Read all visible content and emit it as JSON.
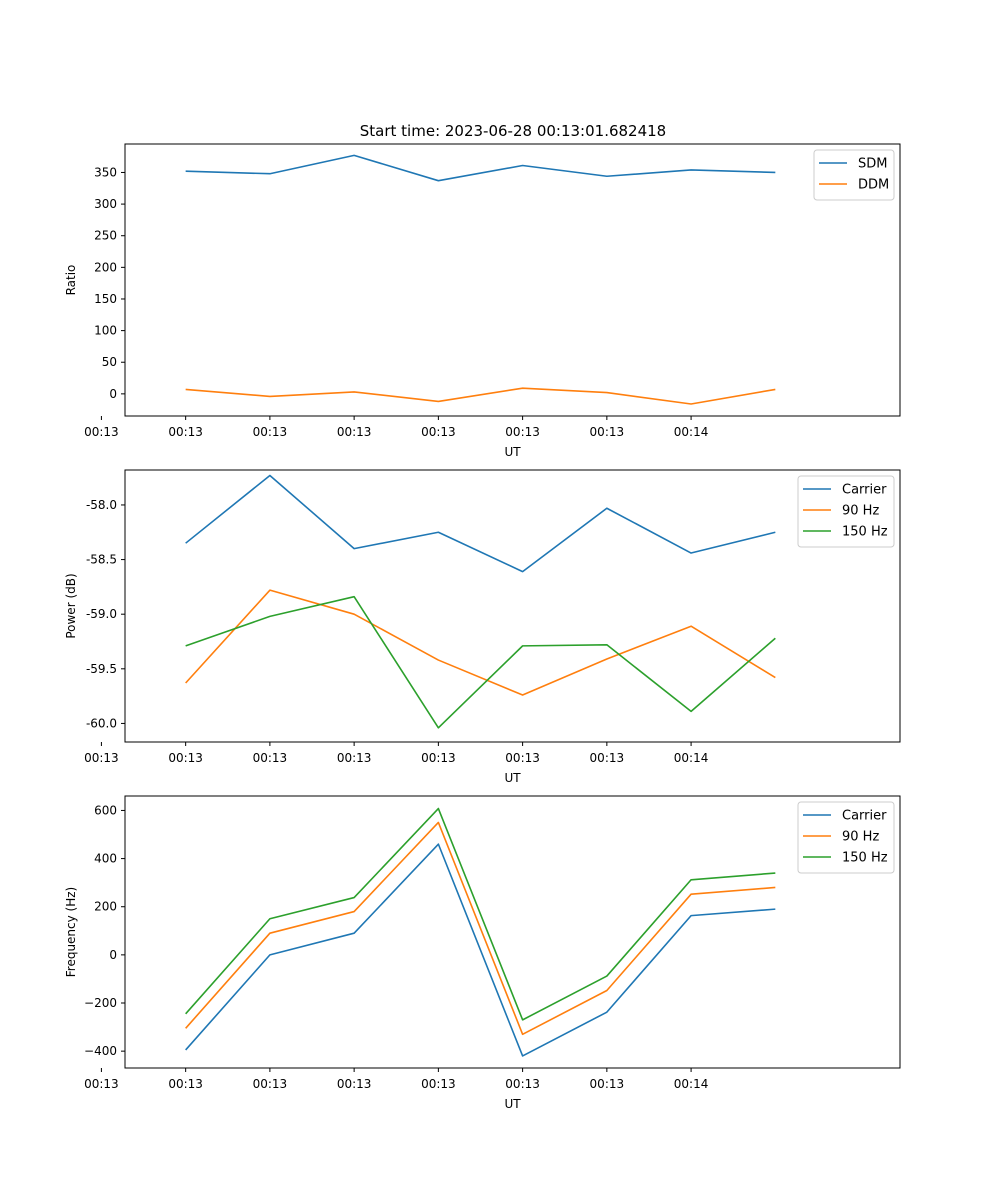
{
  "figure_title": "Start time: 2023-06-28 00:13:01.682418",
  "chart_data": [
    {
      "type": "line",
      "title": "Start time: 2023-06-28 00:13:01.682418",
      "xlabel": "UT",
      "ylabel": "Ratio",
      "x_ticks": [
        "00:13",
        "00:13",
        "00:13",
        "00:13",
        "00:13",
        "00:13",
        "00:13",
        "00:14"
      ],
      "x": [
        1,
        2,
        3,
        4,
        5,
        6,
        7,
        8
      ],
      "xlim": [
        0.28,
        9.48
      ],
      "y_ticks": [
        0,
        50,
        100,
        150,
        200,
        250,
        300,
        350
      ],
      "ylim": [
        -35,
        395
      ],
      "legend_position": "top-right",
      "series": [
        {
          "name": "SDM",
          "color": "#1f77b4",
          "values": [
            352,
            348,
            377,
            337,
            361,
            344,
            354,
            350
          ]
        },
        {
          "name": "DDM",
          "color": "#ff7f0e",
          "values": [
            7,
            -4,
            3,
            -12,
            9,
            2,
            -16,
            7
          ]
        }
      ]
    },
    {
      "type": "line",
      "title": "",
      "xlabel": "UT",
      "ylabel": "Power (dB)",
      "x_ticks": [
        "00:13",
        "00:13",
        "00:13",
        "00:13",
        "00:13",
        "00:13",
        "00:13",
        "00:14"
      ],
      "x": [
        1,
        2,
        3,
        4,
        5,
        6,
        7,
        8
      ],
      "xlim": [
        0.28,
        9.48
      ],
      "y_ticks": [
        "-60.0",
        "-59.5",
        "-59.0",
        "-58.5",
        "-58.0"
      ],
      "y_tick_values": [
        -60.0,
        -59.5,
        -59.0,
        -58.5,
        -58.0
      ],
      "ylim": [
        -60.17,
        -57.68
      ],
      "legend_position": "top-right",
      "series": [
        {
          "name": "Carrier",
          "color": "#1f77b4",
          "values": [
            -58.35,
            -57.73,
            -58.4,
            -58.25,
            -58.61,
            -58.03,
            -58.44,
            -58.25
          ]
        },
        {
          "name": "90 Hz",
          "color": "#ff7f0e",
          "values": [
            -59.63,
            -58.78,
            -59.0,
            -59.42,
            -59.74,
            -59.41,
            -59.11,
            -59.58
          ]
        },
        {
          "name": "150 Hz",
          "color": "#2ca02c",
          "values": [
            -59.29,
            -59.02,
            -58.84,
            -60.04,
            -59.29,
            -59.28,
            -59.89,
            -59.22
          ]
        }
      ]
    },
    {
      "type": "line",
      "title": "",
      "xlabel": "UT",
      "ylabel": "Frequency (Hz)",
      "x_ticks": [
        "00:13",
        "00:13",
        "00:13",
        "00:13",
        "00:13",
        "00:13",
        "00:13",
        "00:14"
      ],
      "x": [
        1,
        2,
        3,
        4,
        5,
        6,
        7,
        8
      ],
      "xlim": [
        0.28,
        9.48
      ],
      "y_ticks": [
        "−400",
        "−200",
        "0",
        "200",
        "400",
        "600"
      ],
      "y_tick_values": [
        -400,
        -200,
        0,
        200,
        400,
        600
      ],
      "ylim": [
        -470,
        660
      ],
      "legend_position": "top-right",
      "series": [
        {
          "name": "Carrier",
          "color": "#1f77b4",
          "values": [
            -395,
            0,
            90,
            460,
            -420,
            -238,
            163,
            190
          ]
        },
        {
          "name": "90 Hz",
          "color": "#ff7f0e",
          "values": [
            -305,
            90,
            180,
            550,
            -330,
            -148,
            252,
            280
          ]
        },
        {
          "name": "150 Hz",
          "color": "#2ca02c",
          "values": [
            -245,
            150,
            238,
            608,
            -270,
            -88,
            312,
            340
          ]
        }
      ]
    }
  ]
}
